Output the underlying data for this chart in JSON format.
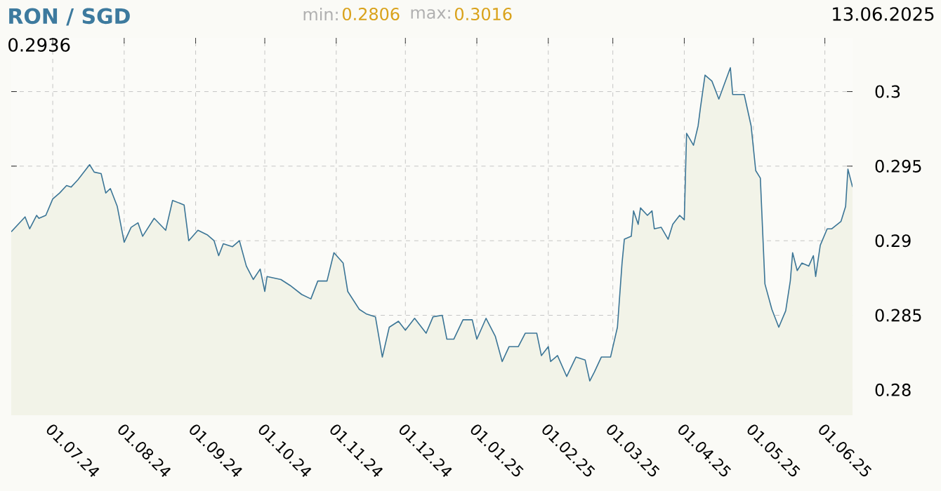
{
  "chart_data": {
    "type": "area",
    "title": "RON / SGD",
    "annotations": [
      "min:",
      "0.2806",
      "max:",
      "0.3016",
      "13.06.2025",
      "0.2936"
    ],
    "x": [
      "2024-06-13",
      "2024-06-19",
      "2024-06-21",
      "2024-06-24",
      "2024-06-25",
      "2024-06-28",
      "2024-07-01",
      "2024-07-04",
      "2024-07-07",
      "2024-07-09",
      "2024-07-12",
      "2024-07-17",
      "2024-07-19",
      "2024-07-22",
      "2024-07-24",
      "2024-07-26",
      "2024-07-29",
      "2024-08-01",
      "2024-08-04",
      "2024-08-07",
      "2024-08-09",
      "2024-08-14",
      "2024-08-19",
      "2024-08-22",
      "2024-08-27",
      "2024-08-29",
      "2024-09-02",
      "2024-09-06",
      "2024-09-09",
      "2024-09-11",
      "2024-09-13",
      "2024-09-17",
      "2024-09-20",
      "2024-09-23",
      "2024-09-26",
      "2024-09-29",
      "2024-10-01",
      "2024-10-02",
      "2024-10-08",
      "2024-10-12",
      "2024-10-17",
      "2024-10-21",
      "2024-10-24",
      "2024-10-28",
      "2024-10-31",
      "2024-11-04",
      "2024-11-06",
      "2024-11-11",
      "2024-11-14",
      "2024-11-18",
      "2024-11-21",
      "2024-11-24",
      "2024-11-28",
      "2024-12-01",
      "2024-12-05",
      "2024-12-10",
      "2024-12-13",
      "2024-12-17",
      "2024-12-19",
      "2024-12-22",
      "2024-12-26",
      "2024-12-30",
      "2025-01-01",
      "2025-01-05",
      "2025-01-09",
      "2025-01-12",
      "2025-01-15",
      "2025-01-19",
      "2025-01-22",
      "2025-01-27",
      "2025-01-29",
      "2025-02-01",
      "2025-02-02",
      "2025-02-05",
      "2025-02-09",
      "2025-02-13",
      "2025-02-17",
      "2025-02-19",
      "2025-02-21",
      "2025-02-24",
      "2025-02-28",
      "2025-03-03",
      "2025-03-05",
      "2025-03-06",
      "2025-03-09",
      "2025-03-10",
      "2025-03-12",
      "2025-03-13",
      "2025-03-16",
      "2025-03-18",
      "2025-03-19",
      "2025-03-22",
      "2025-03-25",
      "2025-03-27",
      "2025-03-30",
      "2025-04-01",
      "2025-04-02",
      "2025-04-05",
      "2025-04-07",
      "2025-04-08",
      "2025-04-10",
      "2025-04-13",
      "2025-04-16",
      "2025-04-21",
      "2025-04-22",
      "2025-04-27",
      "2025-04-30",
      "2025-05-02",
      "2025-05-04",
      "2025-05-06",
      "2025-05-09",
      "2025-05-12",
      "2025-05-15",
      "2025-05-17",
      "2025-05-18",
      "2025-05-20",
      "2025-05-22",
      "2025-05-25",
      "2025-05-27",
      "2025-05-28",
      "2025-05-30",
      "2025-06-02",
      "2025-06-04",
      "2025-06-08",
      "2025-06-10",
      "2025-06-11",
      "2025-06-13"
    ],
    "series": [
      {
        "color": "#3b7596",
        "values": [
          0.2906,
          0.2916,
          0.2908,
          0.2917,
          0.2915,
          0.2917,
          0.2928,
          0.2932,
          0.2937,
          0.2936,
          0.2941,
          0.2951,
          0.2946,
          0.2945,
          0.2932,
          0.2935,
          0.2923,
          0.2899,
          0.2909,
          0.2912,
          0.2903,
          0.2915,
          0.2907,
          0.2927,
          0.2924,
          0.29,
          0.2907,
          0.2904,
          0.29,
          0.289,
          0.2898,
          0.2896,
          0.29,
          0.2883,
          0.2874,
          0.2881,
          0.2866,
          0.2876,
          0.2874,
          0.287,
          0.2864,
          0.2861,
          0.2873,
          0.2873,
          0.2892,
          0.2885,
          0.2866,
          0.2854,
          0.2851,
          0.2849,
          0.2822,
          0.2842,
          0.2846,
          0.284,
          0.2848,
          0.2838,
          0.2849,
          0.285,
          0.2834,
          0.2834,
          0.2847,
          0.2847,
          0.2834,
          0.2848,
          0.2836,
          0.2819,
          0.2829,
          0.2829,
          0.2838,
          0.2838,
          0.2823,
          0.2829,
          0.2819,
          0.2823,
          0.2809,
          0.2822,
          0.282,
          0.2806,
          0.2812,
          0.2822,
          0.2822,
          0.2842,
          0.2885,
          0.2901,
          0.2903,
          0.292,
          0.2911,
          0.2922,
          0.2917,
          0.292,
          0.2908,
          0.2909,
          0.2901,
          0.2911,
          0.2917,
          0.2914,
          0.2972,
          0.2964,
          0.2977,
          0.2989,
          0.3011,
          0.3007,
          0.2995,
          0.3016,
          0.2998,
          0.2998,
          0.2977,
          0.2947,
          0.2942,
          0.2871,
          0.2854,
          0.2842,
          0.2853,
          0.2873,
          0.2892,
          0.288,
          0.2885,
          0.2883,
          0.289,
          0.2876,
          0.2897,
          0.2908,
          0.2908,
          0.2913,
          0.2923,
          0.2948,
          0.2936
        ]
      }
    ],
    "xlim": [
      "2024-06-13",
      "2025-06-13"
    ],
    "xticks": [
      {
        "value": "2024-07-01",
        "label": "01.07.24"
      },
      {
        "value": "2024-08-01",
        "label": "01.08.24"
      },
      {
        "value": "2024-09-01",
        "label": "01.09.24"
      },
      {
        "value": "2024-10-01",
        "label": "01.10.24"
      },
      {
        "value": "2024-11-01",
        "label": "01.11.24"
      },
      {
        "value": "2024-12-01",
        "label": "01.12.24"
      },
      {
        "value": "2025-01-01",
        "label": "01.01.25"
      },
      {
        "value": "2025-02-01",
        "label": "01.02.25"
      },
      {
        "value": "2025-03-01",
        "label": "01.03.25"
      },
      {
        "value": "2025-04-01",
        "label": "01.04.25"
      },
      {
        "value": "2025-05-01",
        "label": "01.05.25"
      },
      {
        "value": "2025-06-01",
        "label": "01.06.25"
      }
    ],
    "ylim": [
      0.2783,
      0.3036
    ],
    "yticks": [
      0.28,
      0.285,
      0.29,
      0.295,
      0.3
    ],
    "grid": true
  }
}
